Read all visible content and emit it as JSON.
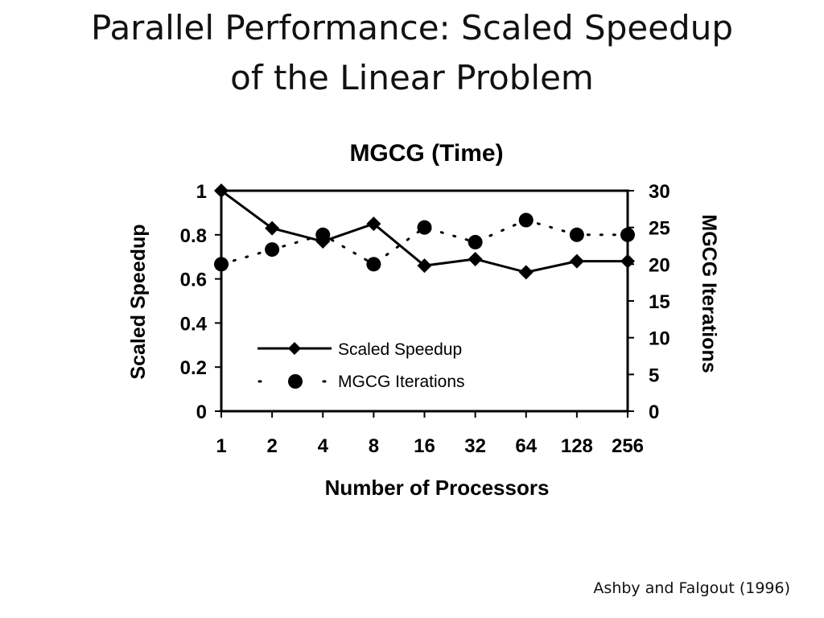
{
  "slide": {
    "title_line1": "Parallel Performance: Scaled Speedup",
    "title_line2": "of the Linear Problem",
    "citation": "Ashby and Falgout (1996)"
  },
  "chart_data": {
    "type": "line",
    "title": "MGCG (Time)",
    "xlabel": "Number of Processors",
    "ylabel": "Scaled Speedup",
    "y2label": "MGCG Iterations",
    "categories": [
      "1",
      "2",
      "4",
      "8",
      "16",
      "32",
      "64",
      "128",
      "256"
    ],
    "ylim": [
      0,
      1
    ],
    "y2lim": [
      0,
      30
    ],
    "yticks": [
      "0",
      "0.2",
      "0.4",
      "0.6",
      "0.8",
      "1"
    ],
    "y2ticks": [
      "0",
      "5",
      "10",
      "15",
      "20",
      "25",
      "30"
    ],
    "grid": false,
    "legend_placement": "inside-lower-left",
    "series": [
      {
        "name": "Scaled Speedup",
        "axis": "left",
        "style": "solid-diamond",
        "values": [
          1.0,
          0.83,
          0.77,
          0.85,
          0.66,
          0.69,
          0.63,
          0.68,
          0.68
        ]
      },
      {
        "name": "MGCG Iterations",
        "axis": "right",
        "style": "dotted-circle",
        "values": [
          20,
          22,
          24,
          20,
          25,
          23,
          26,
          24,
          24
        ]
      }
    ],
    "reference_line": {
      "axis": "left",
      "value": 1.0
    }
  },
  "colors": {
    "ink": "#000000",
    "background": "#ffffff"
  }
}
